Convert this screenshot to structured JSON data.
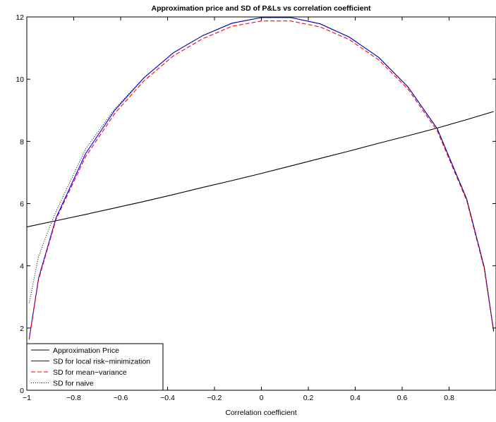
{
  "chart_data": {
    "type": "line",
    "title": "Approximation price and SD of P&Ls vs correlation coefficient",
    "xlabel": "Correlation coefficient",
    "ylabel": "",
    "xlim": [
      -1,
      1
    ],
    "ylim": [
      0,
      12
    ],
    "xticks": [
      -1,
      -0.8,
      -0.6,
      -0.4,
      -0.2,
      0,
      0.2,
      0.4,
      0.6,
      0.8
    ],
    "xtick_labels": [
      "−1",
      "−0.8",
      "−0.6",
      "−0.4",
      "−0.2",
      "0",
      "0.2",
      "0.4",
      "0.6",
      "0.8"
    ],
    "yticks": [
      0,
      2,
      4,
      6,
      8,
      10,
      12
    ],
    "ytick_labels": [
      "0",
      "2",
      "4",
      "6",
      "8",
      "10",
      "12"
    ],
    "grid": false,
    "legend_position": "bottom-left",
    "series": [
      {
        "name": "Approximation Price",
        "color": "#000000",
        "style": "solid",
        "x": [
          -1,
          -0.875,
          -0.75,
          -0.625,
          -0.5,
          -0.375,
          -0.25,
          -0.125,
          0,
          0.125,
          0.25,
          0.375,
          0.5,
          0.625,
          0.75,
          0.875,
          0.99
        ],
        "y": [
          5.25,
          5.45,
          5.65,
          5.86,
          6.07,
          6.29,
          6.52,
          6.74,
          6.97,
          7.21,
          7.45,
          7.69,
          7.94,
          8.18,
          8.43,
          8.7,
          8.96
        ]
      },
      {
        "name": "SD for local risk−minimization",
        "color": "#0000ff",
        "style": "solid",
        "x": [
          -0.99,
          -0.95,
          -0.9,
          -0.875,
          -0.75,
          -0.625,
          -0.5,
          -0.375,
          -0.25,
          -0.125,
          0,
          0.125,
          0.25,
          0.375,
          0.5,
          0.625,
          0.75,
          0.875,
          0.95,
          0.99
        ],
        "y": [
          1.65,
          3.6,
          4.9,
          5.55,
          7.6,
          9.0,
          10.05,
          10.85,
          11.4,
          11.8,
          11.98,
          11.98,
          11.78,
          11.35,
          10.7,
          9.75,
          8.4,
          6.15,
          3.95,
          1.9
        ]
      },
      {
        "name": "SD for mean−variance",
        "color": "#ff0000",
        "style": "dashed",
        "x": [
          -0.99,
          -0.95,
          -0.9,
          -0.875,
          -0.75,
          -0.625,
          -0.5,
          -0.375,
          -0.25,
          -0.125,
          0,
          0.125,
          0.25,
          0.375,
          0.5,
          0.625,
          0.75,
          0.875,
          0.95,
          0.99
        ],
        "y": [
          1.63,
          3.55,
          4.85,
          5.5,
          7.5,
          8.9,
          9.95,
          10.75,
          11.3,
          11.7,
          11.87,
          11.87,
          11.68,
          11.27,
          10.62,
          9.68,
          8.33,
          6.1,
          3.9,
          1.88
        ]
      },
      {
        "name": "SD for naive",
        "color": "#000000",
        "style": "dotted",
        "x": [
          -0.99,
          -0.95,
          -0.9,
          -0.875,
          -0.75,
          -0.625,
          -0.5,
          -0.375,
          -0.25,
          -0.125,
          0,
          0.125,
          0.25,
          0.375,
          0.5,
          0.625,
          0.75,
          0.875,
          0.95,
          0.99
        ],
        "y": [
          2.8,
          4.3,
          5.3,
          5.75,
          7.75,
          9.05,
          10.05,
          10.85,
          11.4,
          11.8,
          11.98,
          11.98,
          11.78,
          11.35,
          10.7,
          9.75,
          8.4,
          6.15,
          3.95,
          1.9
        ]
      }
    ]
  }
}
